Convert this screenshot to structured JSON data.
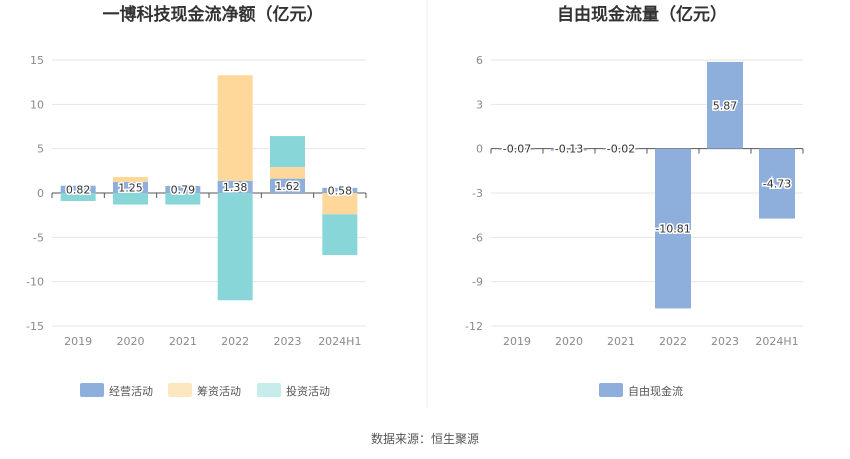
{
  "colors": {
    "operating": "#8eaedc",
    "financing": "#fdd89a",
    "investing": "#89d6d8",
    "free_cash_flow": "#8eaedc"
  },
  "source": "数据来源：恒生聚源",
  "chart_data": [
    {
      "type": "bar",
      "title": "一博科技现金流净额（亿元）",
      "categories": [
        "2019",
        "2020",
        "2021",
        "2022",
        "2023",
        "2024H1"
      ],
      "ylim": [
        -15,
        15
      ],
      "yticks": [
        15,
        10,
        5,
        0,
        -5,
        -10,
        -15
      ],
      "grid": true,
      "legend_position": "bottom",
      "stacked": true,
      "series": [
        {
          "name": "经营活动",
          "values": [
            0.82,
            1.25,
            0.79,
            1.38,
            1.62,
            0.58
          ],
          "color_key": "operating"
        },
        {
          "name": "筹资活动",
          "values": [
            0.0,
            0.55,
            0.0,
            11.9,
            1.3,
            -2.4
          ],
          "color_key": "financing"
        },
        {
          "name": "投资活动",
          "values": [
            -0.9,
            -1.3,
            -1.3,
            -12.1,
            3.5,
            -4.6
          ],
          "color_key": "investing"
        }
      ],
      "data_labels": [
        "0.82",
        "1.25",
        "0.79",
        "1.38",
        "1.62",
        "0.58"
      ]
    },
    {
      "type": "bar",
      "title": "自由现金流量（亿元）",
      "categories": [
        "2019",
        "2020",
        "2021",
        "2022",
        "2023",
        "2024H1"
      ],
      "ylim": [
        -12,
        6
      ],
      "yticks": [
        6,
        3,
        0,
        -3,
        -6,
        -9,
        -12
      ],
      "grid": true,
      "legend_position": "bottom",
      "series": [
        {
          "name": "自由现金流",
          "values": [
            -0.07,
            -0.13,
            -0.02,
            -10.81,
            5.87,
            -4.73
          ],
          "color_key": "free_cash_flow"
        }
      ],
      "data_labels": [
        "-0.07",
        "-0.13",
        "-0.02",
        "-10.81",
        "5.87",
        "-4.73"
      ]
    }
  ]
}
